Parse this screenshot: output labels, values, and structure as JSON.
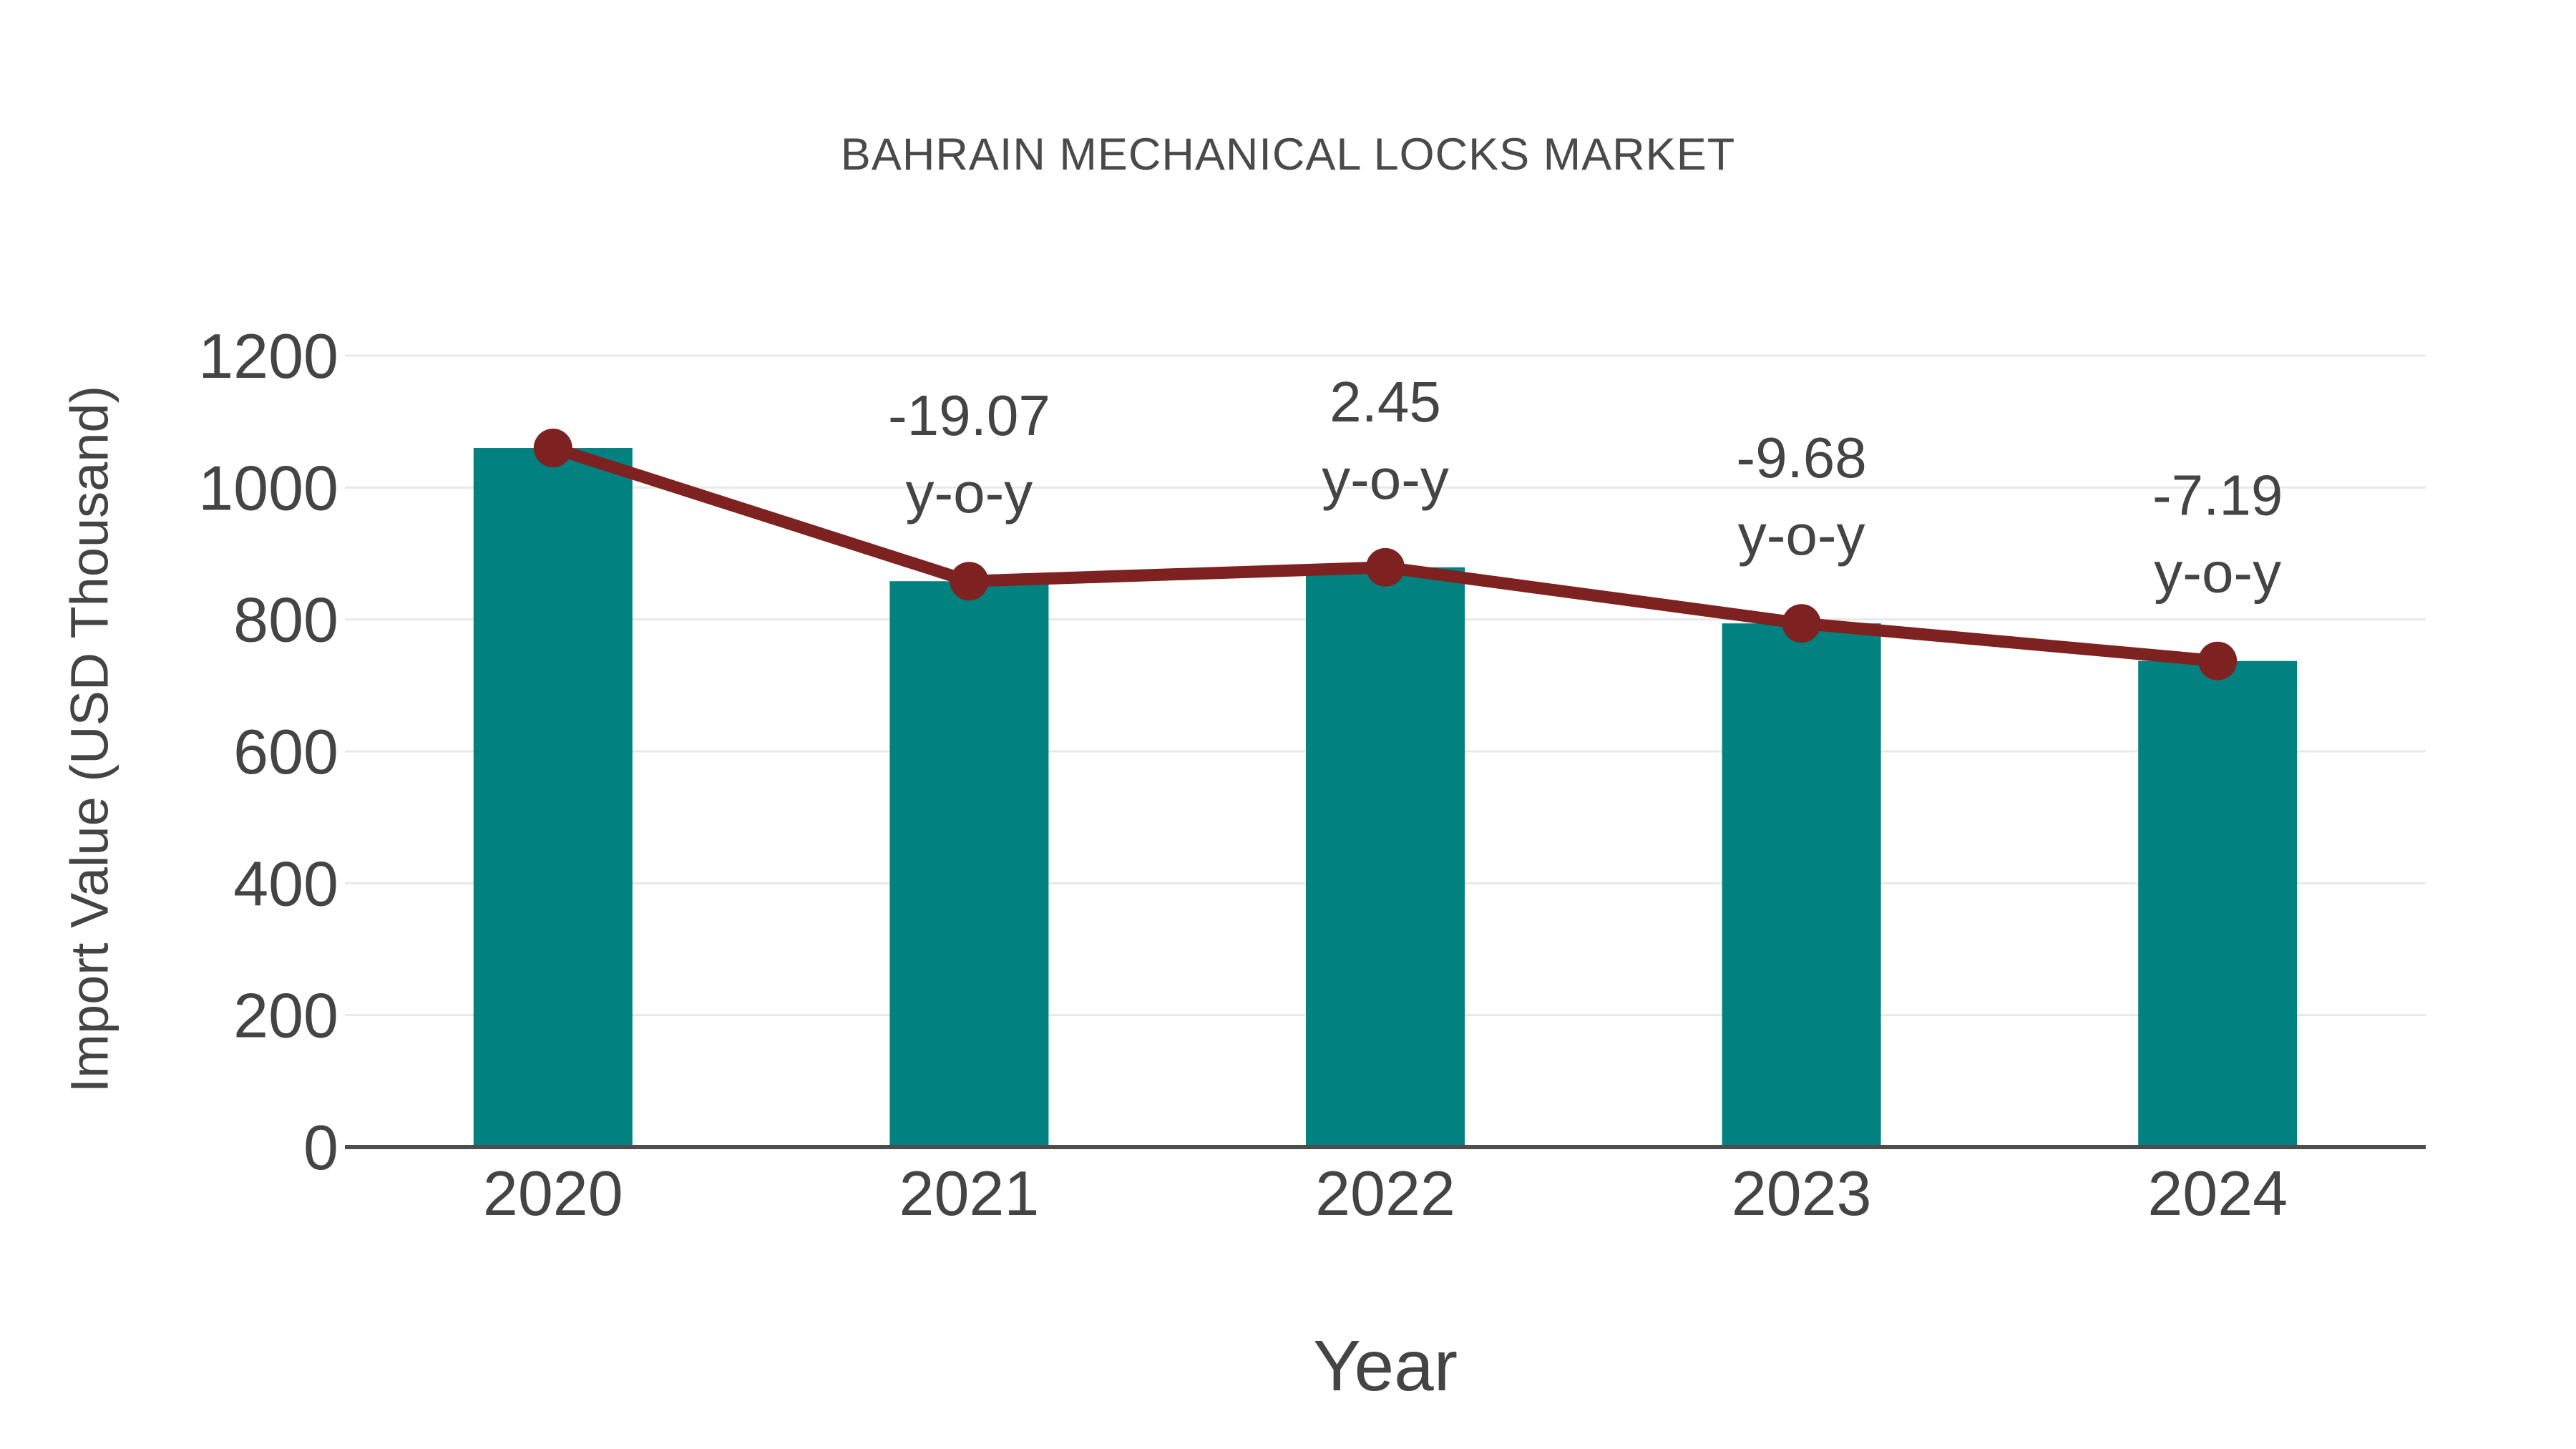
{
  "chart_data": {
    "type": "bar",
    "title": "BAHRAIN MECHANICAL LOCKS MARKET",
    "xlabel": "Year",
    "ylabel": "Import Value (USD Thousand)",
    "categories": [
      "2020",
      "2021",
      "2022",
      "2023",
      "2024"
    ],
    "series": [
      {
        "name": "Import Value",
        "type": "bar",
        "color": "#028181",
        "values": [
          1060,
          858,
          879,
          794,
          737
        ]
      },
      {
        "name": "y-o-y change",
        "type": "line",
        "color": "#7E2121",
        "values": [
          1060,
          858,
          879,
          794,
          737
        ],
        "point_labels": [
          "",
          "-19.07",
          "2.45",
          "-9.68",
          "-7.19"
        ],
        "point_label_second_line": "y-o-y"
      }
    ],
    "ylim": [
      0,
      1200
    ],
    "yticks": [
      0,
      200,
      400,
      600,
      800,
      1000,
      1200
    ],
    "grid": "horizontal",
    "legend": "none"
  },
  "style": {
    "bar_color": "#028181",
    "line_color": "#7E2121",
    "text_color": "#444444",
    "title_color": "#4a4a4a",
    "grid_color": "#e8e8e8",
    "axis_color": "#4d4d4d",
    "background": "#ffffff"
  }
}
